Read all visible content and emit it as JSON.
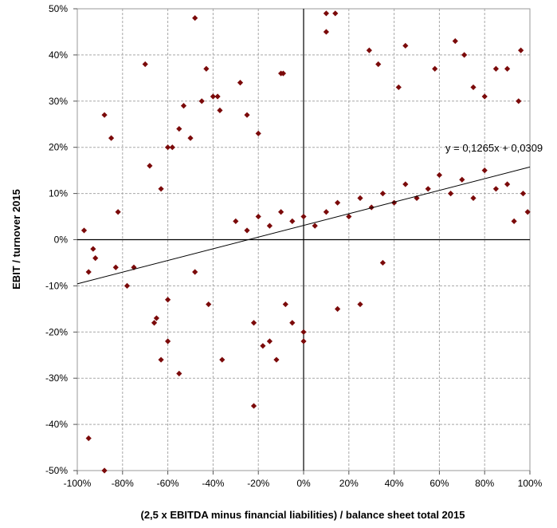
{
  "chart_data": {
    "type": "scatter",
    "title": "",
    "xlabel": "(2,5 x EBITDA minus financial liabilities) / balance sheet total 2015",
    "ylabel": "EBIT / turnover 2015",
    "xlim": [
      -1.0,
      1.0
    ],
    "ylim": [
      -0.5,
      0.5
    ],
    "x_ticks": [
      -1.0,
      -0.8,
      -0.6,
      -0.4,
      -0.2,
      0.0,
      0.2,
      0.4,
      0.6,
      0.8,
      1.0
    ],
    "x_tick_labels": [
      "-100%",
      "-80%",
      "-60%",
      "-40%",
      "-20%",
      "0%",
      "20%",
      "40%",
      "60%",
      "80%",
      "100%"
    ],
    "y_ticks": [
      0.5,
      0.4,
      0.3,
      0.2,
      0.1,
      0.0,
      -0.1,
      -0.2,
      -0.3,
      -0.4,
      -0.5
    ],
    "y_tick_labels": [
      "50%",
      "40%",
      "30%",
      "20%",
      "10%",
      "0%",
      "-10%",
      "-20%",
      "-30%",
      "-40%",
      "-50%"
    ],
    "grid": true,
    "marker_color": "#7B0A0A",
    "trendline": {
      "slope": 0.1265,
      "intercept": 0.0309,
      "label": "y = 0,1265x + 0,0309",
      "color": "#000000"
    },
    "series": [
      {
        "values": [
          [
            -0.97,
            0.02
          ],
          [
            -0.95,
            -0.07
          ],
          [
            -0.93,
            -0.02
          ],
          [
            -0.92,
            -0.04
          ],
          [
            -0.88,
            0.27
          ],
          [
            -0.85,
            0.22
          ],
          [
            -0.82,
            0.06
          ],
          [
            -0.83,
            -0.06
          ],
          [
            -0.78,
            -0.1
          ],
          [
            -0.75,
            -0.06
          ],
          [
            -0.7,
            0.38
          ],
          [
            -0.68,
            0.16
          ],
          [
            -0.66,
            -0.18
          ],
          [
            -0.65,
            -0.17
          ],
          [
            -0.63,
            0.11
          ],
          [
            -0.6,
            0.2
          ],
          [
            -0.58,
            0.2
          ],
          [
            -0.55,
            0.24
          ],
          [
            -0.53,
            0.29
          ],
          [
            -0.5,
            0.22
          ],
          [
            -0.48,
            0.48
          ],
          [
            -0.45,
            0.3
          ],
          [
            -0.43,
            0.37
          ],
          [
            -0.4,
            0.31
          ],
          [
            -0.38,
            0.31
          ],
          [
            -0.37,
            0.28
          ],
          [
            -0.28,
            0.34
          ],
          [
            -0.25,
            0.27
          ],
          [
            -0.2,
            0.23
          ],
          [
            -0.1,
            0.36
          ],
          [
            -0.09,
            0.36
          ],
          [
            0.1,
            0.45
          ],
          [
            0.1,
            0.49
          ],
          [
            0.14,
            0.49
          ],
          [
            0.29,
            0.41
          ],
          [
            0.33,
            0.38
          ],
          [
            0.45,
            0.42
          ],
          [
            0.42,
            0.33
          ],
          [
            0.58,
            0.37
          ],
          [
            0.67,
            0.43
          ],
          [
            0.71,
            0.4
          ],
          [
            0.75,
            0.33
          ],
          [
            0.8,
            0.31
          ],
          [
            0.85,
            0.37
          ],
          [
            0.9,
            0.37
          ],
          [
            0.96,
            0.41
          ],
          [
            0.95,
            0.3
          ],
          [
            0.97,
            0.1
          ],
          [
            0.99,
            0.06
          ],
          [
            0.93,
            0.04
          ],
          [
            -0.6,
            -0.13
          ],
          [
            -0.6,
            -0.22
          ],
          [
            -0.63,
            -0.26
          ],
          [
            -0.55,
            -0.29
          ],
          [
            -0.48,
            -0.07
          ],
          [
            -0.42,
            -0.14
          ],
          [
            -0.36,
            -0.26
          ],
          [
            -0.22,
            -0.36
          ],
          [
            -0.22,
            -0.18
          ],
          [
            -0.18,
            -0.23
          ],
          [
            -0.15,
            -0.22
          ],
          [
            -0.12,
            -0.26
          ],
          [
            -0.08,
            -0.14
          ],
          [
            -0.05,
            -0.18
          ],
          [
            0.0,
            -0.2
          ],
          [
            0.0,
            -0.22
          ],
          [
            0.15,
            -0.15
          ],
          [
            0.25,
            -0.14
          ],
          [
            0.35,
            -0.05
          ],
          [
            -0.95,
            -0.43
          ],
          [
            -0.88,
            -0.5
          ],
          [
            -0.3,
            0.04
          ],
          [
            -0.25,
            0.02
          ],
          [
            -0.2,
            0.05
          ],
          [
            -0.15,
            0.03
          ],
          [
            -0.1,
            0.06
          ],
          [
            -0.05,
            0.04
          ],
          [
            0.0,
            0.05
          ],
          [
            0.05,
            0.03
          ],
          [
            0.1,
            0.06
          ],
          [
            0.15,
            0.08
          ],
          [
            0.2,
            0.05
          ],
          [
            0.25,
            0.09
          ],
          [
            0.3,
            0.07
          ],
          [
            0.35,
            0.1
          ],
          [
            0.4,
            0.08
          ],
          [
            0.45,
            0.12
          ],
          [
            0.5,
            0.09
          ],
          [
            0.55,
            0.11
          ],
          [
            0.6,
            0.14
          ],
          [
            0.65,
            0.1
          ],
          [
            0.7,
            0.13
          ],
          [
            0.75,
            0.09
          ],
          [
            0.8,
            0.15
          ],
          [
            0.85,
            0.11
          ],
          [
            0.9,
            0.12
          ]
        ]
      }
    ]
  }
}
